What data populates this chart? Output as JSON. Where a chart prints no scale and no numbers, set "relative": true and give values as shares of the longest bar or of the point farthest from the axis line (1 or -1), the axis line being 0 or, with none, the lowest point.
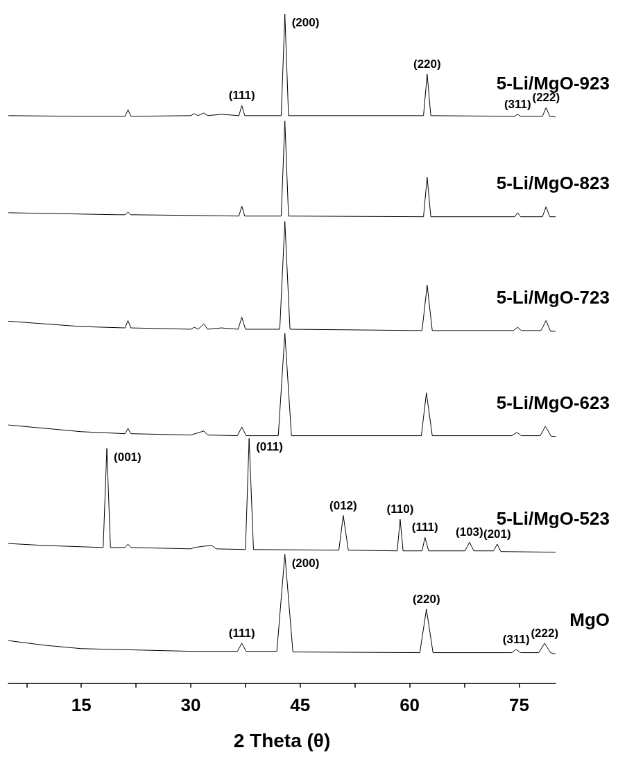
{
  "chart_data": {
    "type": "line",
    "relative": true,
    "xlabel": "2 Theta (θ)",
    "xlim": [
      5,
      80
    ],
    "xticks": [
      {
        "value": 7.5,
        "label": null
      },
      15,
      {
        "value": 22.5,
        "label": null
      },
      30,
      {
        "value": 37.5,
        "label": null
      },
      45,
      {
        "value": 52.5,
        "label": null
      },
      60,
      {
        "value": 67.5,
        "label": null
      },
      75
    ],
    "grid": false,
    "legend": false,
    "series": [
      {
        "name": "5-Li/MgO-923",
        "color": "#000000",
        "x": [
          5,
          15,
          21,
          21.4,
          21.8,
          30,
          30.5,
          31,
          31.8,
          32.3,
          34.2,
          36.6,
          37,
          37.4,
          42.4,
          42.9,
          43.4,
          61.9,
          62.4,
          62.9,
          74.4,
          74.8,
          75.2,
          78.2,
          78.7,
          79.2,
          80
        ],
        "values": [
          0.848,
          0.847,
          0.847,
          0.857,
          0.847,
          0.848,
          0.851,
          0.848,
          0.852,
          0.848,
          0.85,
          0.848,
          0.863,
          0.848,
          0.848,
          1,
          0.848,
          0.848,
          0.91,
          0.848,
          0.847,
          0.85,
          0.847,
          0.847,
          0.86,
          0.847,
          0.846
        ]
      },
      {
        "name": "5-Li/MgO-823",
        "color": "#000000",
        "x": [
          5,
          20,
          21,
          21.4,
          21.8,
          30,
          36.6,
          37,
          37.4,
          42.4,
          42.9,
          43.4,
          61.9,
          62.4,
          62.9,
          74.4,
          74.8,
          75.2,
          78.2,
          78.7,
          79.2,
          80
        ],
        "values": [
          0.703,
          0.7,
          0.7,
          0.704,
          0.7,
          0.699,
          0.698,
          0.713,
          0.698,
          0.698,
          0.84,
          0.698,
          0.697,
          0.756,
          0.697,
          0.697,
          0.703,
          0.697,
          0.697,
          0.712,
          0.697,
          0.697
        ]
      },
      {
        "name": "5-Li/MgO-723",
        "color": "#000000",
        "x": [
          5,
          15,
          21,
          21.4,
          21.8,
          30,
          30.5,
          31,
          31.8,
          32.3,
          34.2,
          36.5,
          37,
          37.5,
          42.2,
          42.9,
          43.6,
          61.7,
          62.4,
          63.1,
          74.2,
          74.8,
          75.3,
          78,
          78.7,
          79.3,
          80
        ],
        "values": [
          0.541,
          0.533,
          0.531,
          0.542,
          0.531,
          0.529,
          0.532,
          0.529,
          0.537,
          0.529,
          0.531,
          0.529,
          0.547,
          0.529,
          0.529,
          0.69,
          0.529,
          0.527,
          0.595,
          0.527,
          0.527,
          0.532,
          0.527,
          0.527,
          0.542,
          0.526,
          0.526
        ]
      },
      {
        "name": "5-Li/MgO-623",
        "color": "#000000",
        "x": [
          5,
          15,
          21,
          21.4,
          21.8,
          30,
          31.8,
          32.3,
          36.4,
          37,
          37.6,
          42,
          42.9,
          43.8,
          61.6,
          62.3,
          63.1,
          74,
          74.7,
          75.3,
          77.9,
          78.6,
          79.4,
          80
        ],
        "values": [
          0.386,
          0.376,
          0.373,
          0.381,
          0.373,
          0.371,
          0.377,
          0.371,
          0.37,
          0.383,
          0.37,
          0.37,
          0.523,
          0.37,
          0.37,
          0.434,
          0.37,
          0.37,
          0.375,
          0.37,
          0.37,
          0.384,
          0.369,
          0.369
        ]
      },
      {
        "name": "5-Li/MgO-523",
        "color": "#000000",
        "x": [
          5,
          10,
          18,
          18.5,
          19,
          21,
          21.4,
          21.8,
          30,
          30.5,
          31.8,
          32.9,
          33.5,
          37.5,
          38,
          38.6,
          50.3,
          50.9,
          51.6,
          58.3,
          58.7,
          59.1,
          61.7,
          62.1,
          62.6,
          67.6,
          68.2,
          68.8,
          71.5,
          72,
          72.5,
          80
        ],
        "values": [
          0.209,
          0.206,
          0.203,
          0.351,
          0.203,
          0.203,
          0.208,
          0.203,
          0.201,
          0.203,
          0.205,
          0.206,
          0.201,
          0.2,
          0.366,
          0.2,
          0.199,
          0.251,
          0.199,
          0.198,
          0.245,
          0.198,
          0.198,
          0.218,
          0.198,
          0.198,
          0.211,
          0.198,
          0.198,
          0.208,
          0.197,
          0.196
        ]
      },
      {
        "name": "MgO",
        "color": "#000000",
        "x": [
          5,
          10,
          15,
          30,
          36.4,
          37,
          37.6,
          41.8,
          42.9,
          44,
          61.4,
          62.3,
          63.2,
          74,
          74.6,
          75.2,
          77.7,
          78.5,
          79.3,
          80
        ],
        "values": [
          0.064,
          0.057,
          0.052,
          0.048,
          0.048,
          0.06,
          0.048,
          0.048,
          0.193,
          0.047,
          0.046,
          0.111,
          0.046,
          0.046,
          0.051,
          0.046,
          0.046,
          0.06,
          0.046,
          0.044
        ]
      }
    ],
    "annotations": [
      {
        "text": "(200)",
        "x": 42.9,
        "y": 1
      },
      {
        "text": "(111)",
        "x": 37,
        "y": 0.863
      },
      {
        "text": "(220)",
        "x": 62.4,
        "y": 0.91
      },
      {
        "text": "(311)",
        "x": 74.8,
        "y": 0.85
      },
      {
        "text": "(222)",
        "x": 78.7,
        "y": 0.86
      },
      {
        "text": "(001)",
        "x": 18.5,
        "y": 0.351
      },
      {
        "text": "(011)",
        "x": 38,
        "y": 0.366
      },
      {
        "text": "(012)",
        "x": 50.9,
        "y": 0.251
      },
      {
        "text": "(110)",
        "x": 58.7,
        "y": 0.245
      },
      {
        "text": "(111)",
        "x": 62.1,
        "y": 0.218
      },
      {
        "text": "(103)",
        "x": 68.2,
        "y": 0.211
      },
      {
        "text": "(201)",
        "x": 72,
        "y": 0.208
      },
      {
        "text": "(200)",
        "x": 42.9,
        "y": 0.193
      },
      {
        "text": "(111)",
        "x": 37,
        "y": 0.06
      },
      {
        "text": "(220)",
        "x": 62.3,
        "y": 0.111
      },
      {
        "text": "(311)",
        "x": 74.6,
        "y": 0.051
      },
      {
        "text": "(222)",
        "x": 78.5,
        "y": 0.06
      }
    ]
  }
}
